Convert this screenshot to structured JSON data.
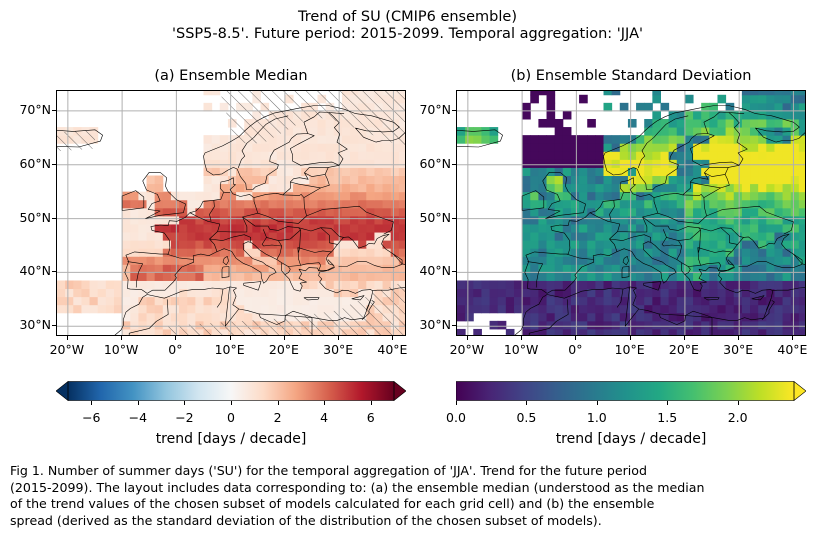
{
  "figure": {
    "title_line1": "Trend of SU (CMIP6 ensemble)",
    "title_line2": "'SSP5-8.5'. Future period: 2015-2099. Temporal aggregation: 'JJA'"
  },
  "panels": [
    {
      "title": "(a) Ensemble Median",
      "cmap": "RdBu_r",
      "colorbar": {
        "ticks": [
          "−6",
          "−4",
          "−2",
          "0",
          "2",
          "4",
          "6"
        ],
        "tick_values": [
          -6,
          -4,
          -2,
          0,
          2,
          4,
          6
        ],
        "range": [
          -7,
          7
        ],
        "extend": "both",
        "label": "trend [days / decade]"
      }
    },
    {
      "title": "(b) Ensemble Standard Deviation",
      "cmap": "viridis",
      "colorbar": {
        "ticks": [
          "0.0",
          "0.5",
          "1.0",
          "1.5",
          "2.0"
        ],
        "tick_values": [
          0,
          0.5,
          1.0,
          1.5,
          2.0
        ],
        "range": [
          0,
          2.4
        ],
        "extend": "max",
        "label": "trend [days / decade]"
      }
    }
  ],
  "axes": {
    "lat_labels": [
      "70°N",
      "60°N",
      "50°N",
      "40°N",
      "30°N"
    ],
    "lat_values": [
      70,
      60,
      50,
      40,
      30
    ],
    "lon_labels": [
      "20°W",
      "10°W",
      "0°",
      "10°E",
      "20°E",
      "30°E",
      "40°E"
    ],
    "lon_values": [
      -20,
      -10,
      0,
      10,
      20,
      30,
      40
    ],
    "lon_range": [
      -22,
      42.5
    ],
    "lat_range": [
      28,
      73.7
    ],
    "gridlines": true
  },
  "caption": {
    "line1": "Fig 1. Number of summer days ('SU') for the temporal aggregation of 'JJA'. Trend for the future period",
    "line2": "(2015-2099). The layout includes data corresponding to: (a) the ensemble median (understood as the median",
    "line3": "of the trend values of the chosen subset of models calculated for each grid cell) and (b) the ensemble",
    "line4": "spread (derived as the standard deviation of the distribution of the chosen subset of models)."
  }
}
